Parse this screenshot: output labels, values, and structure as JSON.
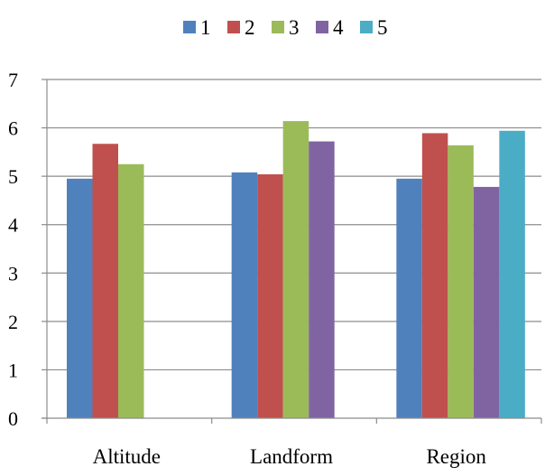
{
  "chart_data": {
    "type": "bar",
    "title": "",
    "xlabel": "",
    "ylabel": "",
    "ylim": [
      0,
      7
    ],
    "yticks": [
      0,
      1,
      2,
      3,
      4,
      5,
      6,
      7
    ],
    "grid": true,
    "legend_position": "top",
    "categories": [
      "Altitude",
      "Landform",
      "Region"
    ],
    "series": [
      {
        "name": "1",
        "color": "#4f81bd",
        "values": [
          4.95,
          5.08,
          4.95
        ]
      },
      {
        "name": "2",
        "color": "#c0504d",
        "values": [
          5.67,
          5.04,
          5.89
        ]
      },
      {
        "name": "3",
        "color": "#9bbb59",
        "values": [
          5.25,
          6.14,
          5.64
        ]
      },
      {
        "name": "4",
        "color": "#8064a2",
        "values": [
          null,
          5.72,
          4.78
        ]
      },
      {
        "name": "5",
        "color": "#4bacc6",
        "values": [
          null,
          null,
          5.94
        ]
      }
    ]
  }
}
